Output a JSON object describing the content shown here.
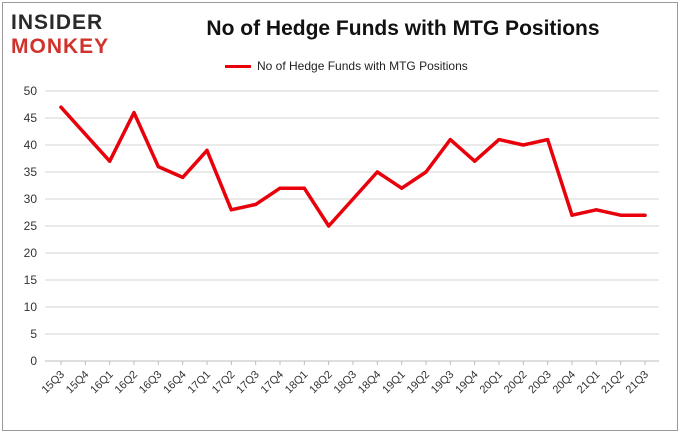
{
  "logo": {
    "line1": "INSIDER",
    "line2": "MONKEY"
  },
  "chart_data": {
    "type": "line",
    "title": "No of Hedge Funds with MTG Positions",
    "xlabel": "",
    "ylabel": "",
    "categories": [
      "15Q3",
      "15Q4",
      "16Q1",
      "16Q2",
      "16Q3",
      "16Q4",
      "17Q1",
      "17Q2",
      "17Q3",
      "17Q4",
      "18Q1",
      "18Q2",
      "18Q3",
      "18Q4",
      "19Q1",
      "19Q2",
      "19Q3",
      "19Q4",
      "20Q1",
      "20Q2",
      "20Q3",
      "20Q4",
      "21Q1",
      "21Q2",
      "21Q3"
    ],
    "series": [
      {
        "name": "No of Hedge Funds with MTG Positions",
        "color": "#e8000b",
        "values": [
          47,
          42,
          37,
          46,
          36,
          34,
          39,
          28,
          29,
          32,
          32,
          25,
          30,
          35,
          32,
          35,
          41,
          37,
          41,
          40,
          41,
          27,
          28,
          27,
          27
        ]
      }
    ],
    "ylim": [
      0,
      50
    ],
    "yticks": [
      0,
      5,
      10,
      15,
      20,
      25,
      30,
      35,
      40,
      45,
      50
    ],
    "grid": true,
    "legend_position": "top-center"
  }
}
